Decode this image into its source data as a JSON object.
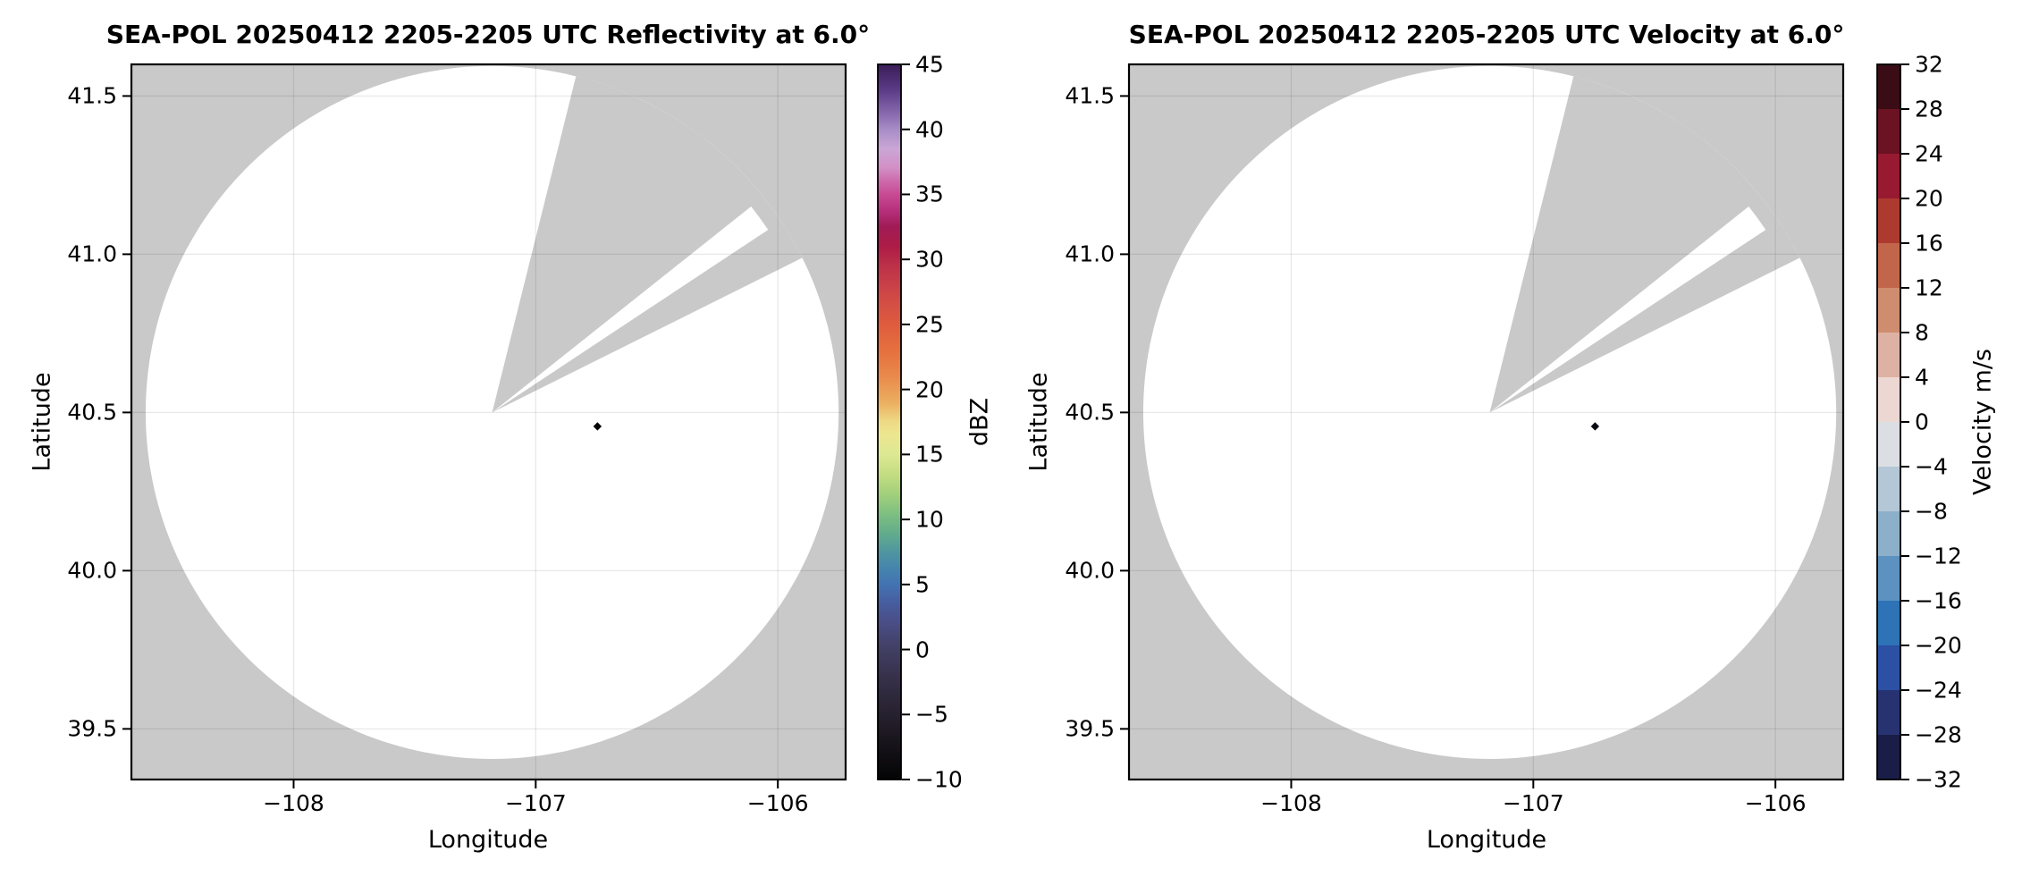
{
  "figure": {
    "background": "#ffffff"
  },
  "chart_data": [
    {
      "type": "radar_ppi_map",
      "panel": "reflectivity",
      "title": "SEA-POL 20250412 2205-2205 UTC Reflectivity at 6.0°",
      "xlabel": "Longitude",
      "ylabel": "Latitude",
      "xlim": [
        -108.67,
        -105.72
      ],
      "ylim": [
        39.34,
        41.6
      ],
      "xticks": [
        -108,
        -107,
        -106
      ],
      "xtick_labels": [
        "−108",
        "−107",
        "−106"
      ],
      "yticks": [
        39.5,
        40.0,
        40.5,
        41.0,
        41.5
      ],
      "ytick_labels": [
        "39.5",
        "40.0",
        "40.5",
        "41.0",
        "41.5"
      ],
      "grid": true,
      "mask_color": "#c9c9c9",
      "scan_area_color": "#ffffff",
      "radar_site": {
        "lon": -107.18,
        "lat": 40.5
      },
      "scan_radius_deg_lat": 1.095,
      "missing_sector_azimuth_deg": [
        14,
        63.5
      ],
      "beam_in_missing_sector": {
        "azimuth_deg": [
          51.5,
          56.5
        ],
        "radius_frac": 0.955
      },
      "data_points": [
        {
          "lon": -106.745,
          "lat": 40.456,
          "shape": "diamond",
          "color": "#050507"
        }
      ],
      "colorbar": {
        "label": "dBZ",
        "style": "continuous",
        "vmin": -10,
        "vmax": 45,
        "ticks": [
          45,
          40,
          35,
          30,
          25,
          20,
          15,
          10,
          5,
          0,
          -5,
          -10
        ],
        "tick_labels": [
          "45",
          "40",
          "35",
          "30",
          "25",
          "20",
          "15",
          "10",
          "5",
          "0",
          "−5",
          "−10"
        ],
        "gradient_stops": [
          [
            0.0,
            "#3a1d58"
          ],
          [
            0.036,
            "#5b3b86"
          ],
          [
            0.073,
            "#8e6fb3"
          ],
          [
            0.091,
            "#a78cc6"
          ],
          [
            0.118,
            "#cba6d6"
          ],
          [
            0.145,
            "#d28fc6"
          ],
          [
            0.164,
            "#cd68ab"
          ],
          [
            0.182,
            "#c84a93"
          ],
          [
            0.205,
            "#b52f7b"
          ],
          [
            0.227,
            "#a01b55"
          ],
          [
            0.255,
            "#ad1c46"
          ],
          [
            0.282,
            "#bc3148"
          ],
          [
            0.309,
            "#c94148"
          ],
          [
            0.336,
            "#d44f44"
          ],
          [
            0.364,
            "#de5c3e"
          ],
          [
            0.4,
            "#e5703e"
          ],
          [
            0.436,
            "#e9894b"
          ],
          [
            0.473,
            "#ebaf60"
          ],
          [
            0.5,
            "#eeda86"
          ],
          [
            0.518,
            "#ede690"
          ],
          [
            0.545,
            "#dde893"
          ],
          [
            0.573,
            "#c4dd82"
          ],
          [
            0.6,
            "#a3d07b"
          ],
          [
            0.627,
            "#80c080"
          ],
          [
            0.655,
            "#63ad8b"
          ],
          [
            0.682,
            "#4e96a0"
          ],
          [
            0.709,
            "#4481af"
          ],
          [
            0.727,
            "#4373b2"
          ],
          [
            0.755,
            "#475c9e"
          ],
          [
            0.782,
            "#4a4d85"
          ],
          [
            0.818,
            "#413f63"
          ],
          [
            0.855,
            "#37314c"
          ],
          [
            0.891,
            "#2c2638"
          ],
          [
            0.927,
            "#201b26"
          ],
          [
            0.964,
            "#120f14"
          ],
          [
            1.0,
            "#040404"
          ]
        ]
      }
    },
    {
      "type": "radar_ppi_map",
      "panel": "velocity",
      "title": "SEA-POL 20250412 2205-2205 UTC Velocity at 6.0°",
      "xlabel": "Longitude",
      "ylabel": "Latitude",
      "xlim": [
        -108.67,
        -105.72
      ],
      "ylim": [
        39.34,
        41.6
      ],
      "xticks": [
        -108,
        -107,
        -106
      ],
      "xtick_labels": [
        "−108",
        "−107",
        "−106"
      ],
      "yticks": [
        39.5,
        40.0,
        40.5,
        41.0,
        41.5
      ],
      "ytick_labels": [
        "39.5",
        "40.0",
        "40.5",
        "41.0",
        "41.5"
      ],
      "grid": true,
      "mask_color": "#c9c9c9",
      "scan_area_color": "#ffffff",
      "radar_site": {
        "lon": -107.18,
        "lat": 40.5
      },
      "scan_radius_deg_lat": 1.095,
      "missing_sector_azimuth_deg": [
        14,
        63.5
      ],
      "beam_in_missing_sector": {
        "azimuth_deg": [
          51.5,
          56.5
        ],
        "radius_frac": 0.955
      },
      "data_points": [
        {
          "lon": -106.745,
          "lat": 40.456,
          "shape": "diamond",
          "color": "#0a0a14"
        }
      ],
      "colorbar": {
        "label": "Velocity m/s",
        "style": "discrete",
        "vmin": -32,
        "vmax": 32,
        "ticks": [
          32,
          28,
          24,
          20,
          16,
          12,
          8,
          4,
          0,
          -4,
          -8,
          -12,
          -16,
          -20,
          -24,
          -28,
          -32
        ],
        "tick_labels": [
          "32",
          "28",
          "24",
          "20",
          "16",
          "12",
          "8",
          "4",
          "0",
          "−4",
          "−8",
          "−12",
          "−16",
          "−20",
          "−24",
          "−28",
          "−32"
        ],
        "segment_colors_top_to_bottom": [
          "#3a0c15",
          "#6b1223",
          "#971a31",
          "#ad3a2f",
          "#c1664a",
          "#ce8d6f",
          "#ddb2a4",
          "#ecd7d2",
          "#dbdfe3",
          "#b4c7d6",
          "#8cb0ca",
          "#5d92c0",
          "#2d73b5",
          "#2c50a4",
          "#273371",
          "#191d47"
        ]
      }
    }
  ]
}
